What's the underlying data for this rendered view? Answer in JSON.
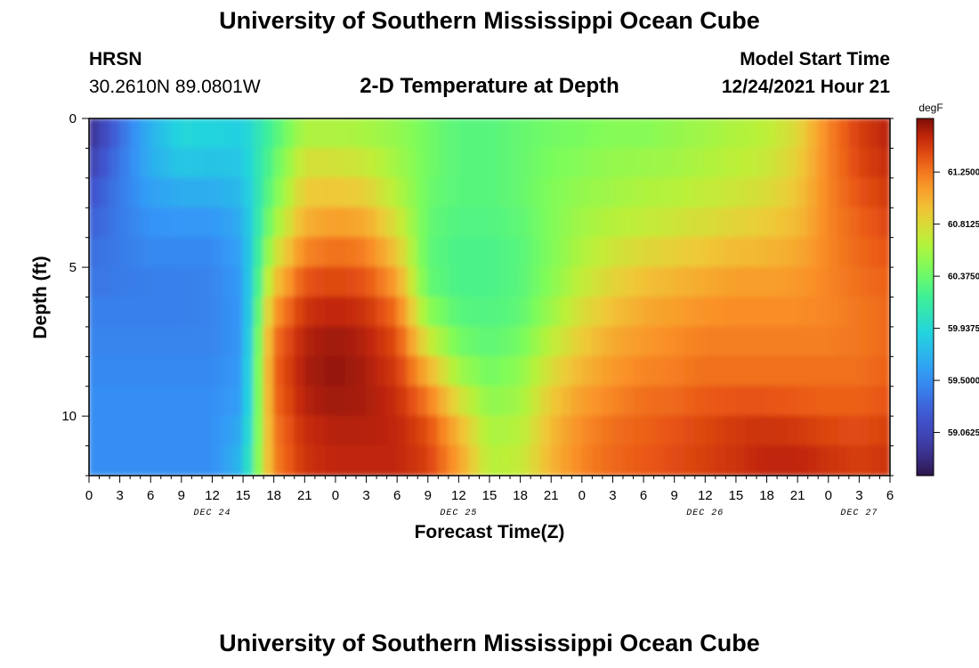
{
  "header": {
    "title": "University of Southern Mississippi Ocean Cube",
    "station": "HRSN",
    "coords": "30.2610N  89.0801W",
    "subtitle": "2-D Temperature at Depth",
    "model_label": "Model Start Time",
    "model_time": "12/24/2021 Hour 21"
  },
  "footer": {
    "title": "University of Southern Mississippi Ocean Cube"
  },
  "chart_data": {
    "type": "heatmap",
    "title": "2-D Temperature at Depth",
    "xlabel": "Forecast Time(Z)",
    "ylabel": "Depth (ft)",
    "x_range_hours": [
      0,
      78
    ],
    "xticks": [
      {
        "h": 0,
        "label": "0"
      },
      {
        "h": 3,
        "label": "3"
      },
      {
        "h": 6,
        "label": "6"
      },
      {
        "h": 9,
        "label": "9"
      },
      {
        "h": 12,
        "label": "12"
      },
      {
        "h": 15,
        "label": "15"
      },
      {
        "h": 18,
        "label": "18"
      },
      {
        "h": 21,
        "label": "21"
      },
      {
        "h": 24,
        "label": "0"
      },
      {
        "h": 27,
        "label": "3"
      },
      {
        "h": 30,
        "label": "6"
      },
      {
        "h": 33,
        "label": "9"
      },
      {
        "h": 36,
        "label": "12"
      },
      {
        "h": 39,
        "label": "15"
      },
      {
        "h": 42,
        "label": "18"
      },
      {
        "h": 45,
        "label": "21"
      },
      {
        "h": 48,
        "label": "0"
      },
      {
        "h": 51,
        "label": "3"
      },
      {
        "h": 54,
        "label": "6"
      },
      {
        "h": 57,
        "label": "9"
      },
      {
        "h": 60,
        "label": "12"
      },
      {
        "h": 63,
        "label": "15"
      },
      {
        "h": 66,
        "label": "18"
      },
      {
        "h": 69,
        "label": "21"
      },
      {
        "h": 72,
        "label": "0"
      },
      {
        "h": 75,
        "label": "3"
      },
      {
        "h": 78,
        "label": "6"
      }
    ],
    "day_labels": [
      {
        "h": 12,
        "label": "DEC 24"
      },
      {
        "h": 36,
        "label": "DEC 25"
      },
      {
        "h": 60,
        "label": "DEC 26"
      },
      {
        "h": 75,
        "label": "DEC 27"
      }
    ],
    "depth_range_ft": [
      0,
      12
    ],
    "yticks": [
      0,
      5,
      10
    ],
    "colorbar": {
      "unit": "degF",
      "range": [
        58.7,
        61.7
      ],
      "ticks": [
        {
          "value": 61.25,
          "label": "61.2500"
        },
        {
          "value": 60.8125,
          "label": "60.8125"
        },
        {
          "value": 60.375,
          "label": "60.3750"
        },
        {
          "value": 59.9375,
          "label": "59.9375"
        },
        {
          "value": 59.5,
          "label": "59.5000"
        },
        {
          "value": 59.0625,
          "label": "59.0625"
        }
      ]
    },
    "depth_rows_ft": [
      0,
      1,
      2,
      3,
      4,
      5,
      6,
      7,
      8,
      9,
      10,
      11
    ],
    "time_columns_hours": [
      0,
      3,
      6,
      9,
      12,
      15,
      18,
      21,
      24,
      27,
      30,
      33,
      36,
      39,
      42,
      45,
      48,
      51,
      54,
      57,
      60,
      63,
      66,
      69,
      72,
      75,
      78
    ],
    "temperature_degF": [
      [
        58.8,
        59.3,
        59.7,
        59.95,
        59.95,
        59.9,
        60.2,
        60.55,
        60.55,
        60.55,
        60.5,
        60.4,
        60.3,
        60.3,
        60.35,
        60.4,
        60.4,
        60.45,
        60.45,
        60.5,
        60.55,
        60.6,
        60.65,
        60.8,
        61.2,
        61.45,
        61.6
      ],
      [
        58.9,
        59.35,
        59.7,
        59.9,
        59.85,
        59.85,
        60.3,
        60.7,
        60.7,
        60.65,
        60.55,
        60.4,
        60.3,
        60.3,
        60.35,
        60.4,
        60.45,
        60.5,
        60.5,
        60.55,
        60.6,
        60.65,
        60.7,
        60.85,
        61.2,
        61.45,
        61.55
      ],
      [
        59.1,
        59.4,
        59.65,
        59.75,
        59.75,
        59.8,
        60.35,
        60.85,
        60.85,
        60.8,
        60.6,
        60.4,
        60.3,
        60.3,
        60.35,
        60.45,
        60.5,
        60.55,
        60.6,
        60.6,
        60.65,
        60.7,
        60.75,
        60.9,
        61.2,
        61.4,
        61.5
      ],
      [
        59.2,
        59.4,
        59.55,
        59.6,
        59.6,
        59.7,
        60.45,
        60.95,
        61.0,
        60.95,
        60.7,
        60.35,
        60.3,
        60.3,
        60.35,
        60.45,
        60.55,
        60.6,
        60.65,
        60.7,
        60.75,
        60.8,
        60.85,
        60.95,
        61.2,
        61.35,
        61.45
      ],
      [
        59.3,
        59.4,
        59.5,
        59.5,
        59.5,
        59.65,
        60.6,
        61.1,
        61.2,
        61.15,
        60.85,
        60.35,
        60.25,
        60.25,
        60.3,
        60.45,
        60.6,
        60.7,
        60.75,
        60.8,
        60.85,
        60.9,
        60.95,
        61.0,
        61.2,
        61.3,
        61.4
      ],
      [
        59.35,
        59.4,
        59.45,
        59.45,
        59.45,
        59.6,
        60.8,
        61.3,
        61.35,
        61.3,
        61.0,
        60.3,
        60.25,
        60.25,
        60.3,
        60.45,
        60.65,
        60.8,
        60.9,
        60.95,
        61.0,
        61.05,
        61.05,
        61.1,
        61.2,
        61.3,
        61.35
      ],
      [
        59.4,
        59.4,
        59.4,
        59.4,
        59.45,
        59.55,
        61.0,
        61.45,
        61.5,
        61.45,
        61.2,
        60.4,
        60.25,
        60.25,
        60.3,
        60.5,
        60.75,
        60.9,
        61.0,
        61.05,
        61.1,
        61.15,
        61.15,
        61.15,
        61.2,
        61.25,
        61.3
      ],
      [
        59.45,
        59.45,
        59.45,
        59.45,
        59.45,
        59.55,
        61.2,
        61.55,
        61.6,
        61.55,
        61.35,
        60.6,
        60.35,
        60.3,
        60.35,
        60.6,
        60.85,
        61.0,
        61.1,
        61.15,
        61.2,
        61.2,
        61.2,
        61.2,
        61.2,
        61.25,
        61.3
      ],
      [
        59.45,
        59.45,
        59.45,
        59.45,
        59.45,
        59.55,
        61.3,
        61.6,
        61.65,
        61.6,
        61.45,
        60.9,
        60.45,
        60.35,
        60.45,
        60.75,
        60.95,
        61.1,
        61.15,
        61.2,
        61.25,
        61.25,
        61.25,
        61.25,
        61.25,
        61.25,
        61.3
      ],
      [
        59.5,
        59.5,
        59.5,
        59.5,
        59.5,
        59.6,
        61.3,
        61.6,
        61.65,
        61.6,
        61.5,
        61.15,
        60.7,
        60.45,
        60.55,
        60.85,
        61.05,
        61.15,
        61.25,
        61.25,
        61.3,
        61.3,
        61.3,
        61.3,
        61.3,
        61.3,
        61.35
      ],
      [
        59.5,
        59.5,
        59.5,
        59.5,
        59.5,
        59.6,
        61.25,
        61.55,
        61.6,
        61.6,
        61.55,
        61.35,
        60.9,
        60.55,
        60.6,
        60.95,
        61.15,
        61.25,
        61.3,
        61.35,
        61.4,
        61.45,
        61.45,
        61.4,
        61.35,
        61.35,
        61.4
      ],
      [
        59.5,
        59.5,
        59.5,
        59.5,
        59.5,
        59.75,
        61.2,
        61.5,
        61.55,
        61.55,
        61.55,
        61.45,
        61.1,
        60.65,
        60.7,
        61.0,
        61.2,
        61.3,
        61.35,
        61.4,
        61.45,
        61.5,
        61.55,
        61.55,
        61.5,
        61.45,
        61.5
      ]
    ]
  }
}
